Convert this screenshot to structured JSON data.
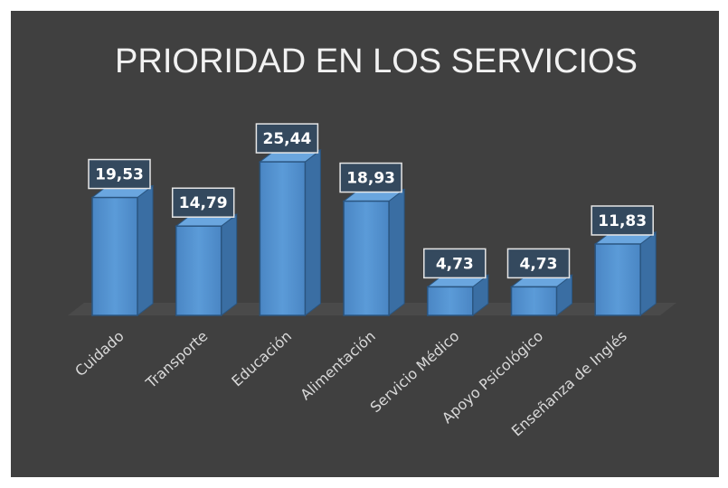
{
  "chart_data": {
    "type": "bar",
    "title": "PRIORIDAD EN LOS SERVICIOS",
    "categories": [
      "Cuidado",
      "Transporte",
      "Educación",
      "Alimentación",
      "Servicio Médico",
      "Apoyo Psicológico",
      "Enseñanza de Inglés"
    ],
    "values": [
      19.53,
      14.79,
      25.44,
      18.93,
      4.73,
      4.73,
      11.83
    ],
    "value_labels": [
      "19,53",
      "14,79",
      "25,44",
      "18,93",
      "4,73",
      "4,73",
      "11,83"
    ],
    "color": "#4f8fcf"
  }
}
